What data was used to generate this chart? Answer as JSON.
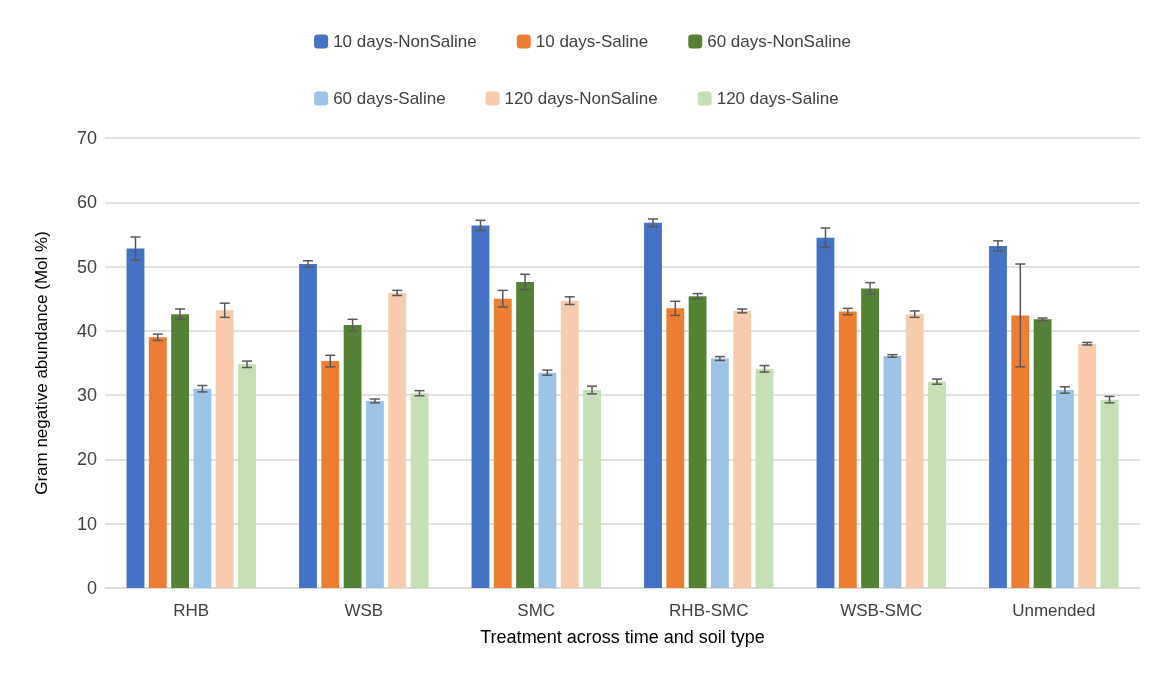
{
  "chart_data": {
    "type": "bar",
    "xlabel": "Treatment across time and soil type",
    "ylabel": "Gram negative abundance (Mol %)",
    "categories": [
      "RHB",
      "WSB",
      "SMC",
      "RHB-SMC",
      "WSB-SMC",
      "Unmended"
    ],
    "ylim": [
      0,
      70
    ],
    "yticks": [
      0,
      10,
      20,
      30,
      40,
      50,
      60,
      70
    ],
    "grid": "y",
    "legend": "top",
    "series": [
      {
        "name": "10 days-NonSaline",
        "color": "#4472c4",
        "values": [
          52.8,
          50.4,
          56.4,
          56.8,
          54.5,
          53.2
        ],
        "errors": [
          1.8,
          0.5,
          0.8,
          0.6,
          1.5,
          0.8
        ]
      },
      {
        "name": "10 days-Saline",
        "color": "#ed7d31",
        "values": [
          39.0,
          35.3,
          45.0,
          43.5,
          43.0,
          42.4
        ],
        "errors": [
          0.5,
          0.9,
          1.3,
          1.1,
          0.5,
          8.0
        ]
      },
      {
        "name": "60 days-NonSaline",
        "color": "#548235",
        "values": [
          42.6,
          40.9,
          47.6,
          45.4,
          46.6,
          41.8
        ],
        "errors": [
          0.8,
          0.9,
          1.2,
          0.4,
          0.9,
          0.2
        ]
      },
      {
        "name": "60 days-Saline",
        "color": "#9dc3e6",
        "values": [
          31.0,
          29.1,
          33.5,
          35.7,
          36.1,
          30.8
        ],
        "errors": [
          0.5,
          0.3,
          0.4,
          0.3,
          0.2,
          0.5
        ]
      },
      {
        "name": "120 days-NonSaline",
        "color": "#f8cbad",
        "values": [
          43.2,
          45.9,
          44.7,
          43.1,
          42.6,
          38.0
        ],
        "errors": [
          1.1,
          0.4,
          0.6,
          0.3,
          0.5,
          0.2
        ]
      },
      {
        "name": "120 days-Saline",
        "color": "#c5e0b4",
        "values": [
          34.8,
          30.3,
          30.8,
          34.1,
          32.1,
          29.3
        ],
        "errors": [
          0.5,
          0.4,
          0.6,
          0.5,
          0.4,
          0.5
        ]
      }
    ]
  }
}
